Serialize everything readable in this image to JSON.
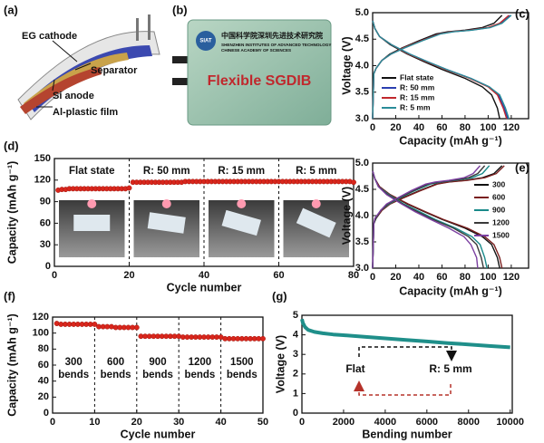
{
  "panel_a": {
    "label": "(a)",
    "parts": [
      "EG cathode",
      "Separator",
      "Si anode",
      "Al-plastic film"
    ]
  },
  "panel_b": {
    "label": "(b)",
    "title": "Flexible SGDIB",
    "logo": "SIAT",
    "institute_cn": "中国科学院深圳先进技术研究院",
    "institute_en": [
      "SHENZHEN INSTITUTES OF ADVANCED TECHNOLOGY",
      "CHINESE ACADEMY OF SCIENCES"
    ]
  },
  "chart_data": [
    {
      "type": "line",
      "panel_label": "(c)",
      "xlabel": "Capacity (mAh g⁻¹)",
      "ylabel": "Voltage (V)",
      "xlim": [
        0,
        135
      ],
      "xticks": [
        0,
        20,
        40,
        60,
        80,
        100,
        120
      ],
      "ylim": [
        3,
        5
      ],
      "yticks": [
        {
          "value": 3,
          "label": "3.0"
        },
        3.5,
        {
          "value": 4,
          "label": "4.0"
        },
        4.5,
        {
          "value": 5,
          "label": "5.0"
        }
      ],
      "legend": "lower left",
      "series": [
        {
          "name": "Flat state",
          "color": "#111111",
          "x": [
            0,
            1,
            3,
            8,
            15,
            25,
            40,
            55,
            65,
            80,
            95,
            105,
            112,
            null,
            0,
            2,
            6,
            15,
            30,
            45,
            60,
            80,
            95,
            103,
            108,
            110
          ],
          "values": [
            3.0,
            3.85,
            3.95,
            4.1,
            4.22,
            4.33,
            4.47,
            4.6,
            4.64,
            4.67,
            4.72,
            4.8,
            4.95,
            null,
            4.85,
            4.7,
            4.55,
            4.4,
            4.22,
            4.07,
            3.93,
            3.76,
            3.6,
            3.45,
            3.2,
            3.0
          ]
        },
        {
          "name": "R: 50 mm",
          "color": "#2b3fb0",
          "x": [
            0,
            1,
            3,
            8,
            16,
            27,
            42,
            58,
            69,
            85,
            101,
            111,
            119,
            null,
            0,
            2,
            6,
            16,
            32,
            48,
            64,
            85,
            101,
            109,
            114,
            117
          ],
          "values": [
            3.0,
            3.85,
            3.95,
            4.1,
            4.22,
            4.33,
            4.47,
            4.6,
            4.64,
            4.67,
            4.72,
            4.8,
            4.95,
            null,
            4.85,
            4.7,
            4.55,
            4.4,
            4.22,
            4.07,
            3.93,
            3.76,
            3.6,
            3.45,
            3.2,
            3.0
          ]
        },
        {
          "name": "R: 15 mm",
          "color": "#c0282d",
          "x": [
            0,
            1,
            3,
            8,
            16,
            26,
            42,
            58,
            68,
            84,
            100,
            110,
            118,
            null,
            0,
            2,
            6,
            16,
            31,
            47,
            63,
            84,
            100,
            108,
            113,
            116
          ],
          "values": [
            3.0,
            3.85,
            3.95,
            4.1,
            4.22,
            4.33,
            4.47,
            4.6,
            4.64,
            4.67,
            4.72,
            4.8,
            4.95,
            null,
            4.85,
            4.7,
            4.55,
            4.4,
            4.22,
            4.07,
            3.93,
            3.76,
            3.6,
            3.45,
            3.2,
            3.0
          ]
        },
        {
          "name": "R: 5 mm",
          "color": "#2a8c99",
          "x": [
            0,
            1,
            3,
            8,
            16,
            27,
            43,
            59,
            70,
            86,
            102,
            112,
            120,
            null,
            0,
            2,
            6,
            16,
            32,
            48,
            64,
            85,
            101,
            110,
            115,
            118
          ],
          "values": [
            3.0,
            3.85,
            3.95,
            4.1,
            4.22,
            4.33,
            4.47,
            4.6,
            4.64,
            4.67,
            4.72,
            4.8,
            4.95,
            null,
            4.85,
            4.7,
            4.55,
            4.4,
            4.22,
            4.07,
            3.93,
            3.76,
            3.6,
            3.45,
            3.2,
            3.0
          ]
        }
      ]
    },
    {
      "type": "scatter",
      "panel_label": "(d)",
      "xlabel": "Cycle number",
      "ylabel": "Capacity (mAh g⁻¹)",
      "xlim": [
        0,
        80
      ],
      "xticks": [
        0,
        20,
        40,
        60,
        80
      ],
      "ylim": [
        0,
        150
      ],
      "yticks": [
        0,
        30,
        60,
        90,
        120,
        150
      ],
      "dividers": [
        20,
        40,
        60
      ],
      "region_labels": [
        "Flat state",
        "R: 50 mm",
        "R: 15 mm",
        "R: 5 mm"
      ],
      "series": [
        {
          "name": "Capacity",
          "color": "#d9261c",
          "x": [
            1,
            2,
            3,
            4,
            5,
            6,
            7,
            8,
            9,
            10,
            11,
            12,
            13,
            14,
            15,
            16,
            17,
            18,
            19,
            20,
            21,
            22,
            23,
            24,
            25,
            26,
            27,
            28,
            29,
            30,
            31,
            32,
            33,
            34,
            35,
            36,
            37,
            38,
            39,
            40,
            41,
            42,
            43,
            44,
            45,
            46,
            47,
            48,
            49,
            50,
            51,
            52,
            53,
            54,
            55,
            56,
            57,
            58,
            59,
            60,
            61,
            62,
            63,
            64,
            65,
            66,
            67,
            68,
            69,
            70,
            71,
            72,
            73,
            74,
            75,
            76,
            77,
            78,
            79,
            80
          ],
          "values": [
            106,
            107,
            107,
            108,
            108,
            108,
            108,
            108,
            108,
            108,
            108,
            108,
            108,
            108,
            108,
            108,
            108,
            108,
            108,
            109,
            117,
            117,
            117,
            117,
            117,
            117,
            117,
            117,
            117,
            117,
            117,
            117,
            117,
            117,
            118,
            118,
            118,
            118,
            118,
            118,
            118,
            118,
            118,
            118,
            118,
            118,
            118,
            118,
            118,
            118,
            118,
            118,
            118,
            118,
            118,
            118,
            118,
            118,
            118,
            118,
            118,
            118,
            118,
            118,
            118,
            118,
            118,
            118,
            118,
            118,
            118,
            118,
            118,
            118,
            118,
            118,
            118,
            118,
            118,
            117
          ]
        }
      ]
    },
    {
      "type": "line",
      "panel_label": "(e)",
      "xlabel": "Capacity (mAh g⁻¹)",
      "ylabel": "Voltage (V)",
      "xlim": [
        0,
        135
      ],
      "xticks": [
        0,
        20,
        40,
        60,
        80,
        100,
        120
      ],
      "ylim": [
        3,
        5
      ],
      "yticks": [
        {
          "value": 3,
          "label": "3.0"
        },
        3.5,
        {
          "value": 4,
          "label": "4.0"
        },
        4.5,
        {
          "value": 5,
          "label": "5.0"
        }
      ],
      "legend": "upper right",
      "series": [
        {
          "name": "300",
          "color": "#111111",
          "x": [
            0,
            1,
            3,
            8,
            15,
            25,
            40,
            55,
            65,
            80,
            95,
            105,
            112,
            null,
            0,
            2,
            6,
            15,
            30,
            45,
            60,
            80,
            95,
            103,
            108,
            110
          ],
          "values": [
            3.0,
            3.85,
            3.95,
            4.1,
            4.22,
            4.33,
            4.47,
            4.6,
            4.64,
            4.67,
            4.72,
            4.8,
            4.95,
            null,
            4.85,
            4.7,
            4.55,
            4.4,
            4.22,
            4.07,
            3.93,
            3.76,
            3.6,
            3.45,
            3.2,
            3.0
          ]
        },
        {
          "name": "600",
          "color": "#7a1f1f",
          "x": [
            0,
            1,
            3,
            8,
            15,
            26,
            41,
            56,
            66,
            82,
            97,
            107,
            114,
            null,
            0,
            2,
            6,
            15,
            31,
            46,
            61,
            82,
            97,
            105,
            110,
            112
          ],
          "values": [
            3.0,
            3.85,
            3.95,
            4.1,
            4.22,
            4.33,
            4.47,
            4.6,
            4.64,
            4.67,
            4.72,
            4.8,
            4.95,
            null,
            4.85,
            4.7,
            4.55,
            4.4,
            4.22,
            4.07,
            3.93,
            3.76,
            3.6,
            3.45,
            3.2,
            3.0
          ]
        },
        {
          "name": "900",
          "color": "#1a8a8a",
          "x": [
            0,
            1,
            3,
            7,
            14,
            23,
            36,
            50,
            59,
            72,
            86,
            95,
            101,
            null,
            0,
            2,
            5,
            14,
            27,
            41,
            54,
            72,
            86,
            93,
            97,
            99
          ],
          "values": [
            3.0,
            3.85,
            3.95,
            4.1,
            4.22,
            4.33,
            4.47,
            4.6,
            4.64,
            4.67,
            4.72,
            4.8,
            4.95,
            null,
            4.85,
            4.7,
            4.55,
            4.4,
            4.22,
            4.07,
            3.93,
            3.76,
            3.6,
            3.45,
            3.2,
            3.0
          ]
        },
        {
          "name": "1200",
          "color": "#3a3a3a",
          "x": [
            0,
            1,
            3,
            7,
            13,
            22,
            35,
            48,
            57,
            70,
            83,
            91,
            97,
            null,
            0,
            2,
            5,
            13,
            26,
            39,
            52,
            70,
            83,
            90,
            94,
            96
          ],
          "values": [
            3.0,
            3.85,
            3.95,
            4.1,
            4.22,
            4.33,
            4.47,
            4.6,
            4.64,
            4.67,
            4.72,
            4.8,
            4.95,
            null,
            4.85,
            4.7,
            4.55,
            4.4,
            4.22,
            4.07,
            3.93,
            3.76,
            3.6,
            3.45,
            3.2,
            3.0
          ]
        },
        {
          "name": "1500",
          "color": "#7b3fa0",
          "x": [
            0,
            1,
            2,
            7,
            12,
            21,
            33,
            46,
            54,
            66,
            79,
            87,
            93,
            null,
            0,
            2,
            5,
            12,
            25,
            37,
            50,
            66,
            79,
            85,
            90,
            91
          ],
          "values": [
            3.0,
            3.85,
            3.95,
            4.1,
            4.22,
            4.33,
            4.47,
            4.6,
            4.64,
            4.67,
            4.72,
            4.8,
            4.95,
            null,
            4.85,
            4.7,
            4.55,
            4.4,
            4.22,
            4.07,
            3.93,
            3.76,
            3.6,
            3.45,
            3.2,
            3.0
          ]
        }
      ]
    },
    {
      "type": "scatter",
      "panel_label": "(f)",
      "xlabel": "Cycle number",
      "ylabel": "Capacity (mAh g⁻¹)",
      "xlim": [
        0,
        50
      ],
      "xticks": [
        0,
        10,
        20,
        30,
        40,
        50
      ],
      "ylim": [
        0,
        120
      ],
      "yticks": [
        0,
        20,
        40,
        60,
        80,
        100,
        120
      ],
      "dividers": [
        10,
        20,
        30,
        40
      ],
      "region_labels": [
        [
          "300",
          "bends"
        ],
        [
          "600",
          "bends"
        ],
        [
          "900",
          "bends"
        ],
        [
          "1200",
          "bends"
        ],
        [
          "1500",
          "bends"
        ]
      ],
      "series": [
        {
          "name": "Capacity",
          "color": "#d9261c",
          "x": [
            1,
            2,
            3,
            4,
            5,
            6,
            7,
            8,
            9,
            10,
            11,
            12,
            13,
            14,
            15,
            16,
            17,
            18,
            19,
            20,
            21,
            22,
            23,
            24,
            25,
            26,
            27,
            28,
            29,
            30,
            31,
            32,
            33,
            34,
            35,
            36,
            37,
            38,
            39,
            40,
            41,
            42,
            43,
            44,
            45,
            46,
            47,
            48,
            49,
            50
          ],
          "values": [
            112,
            111,
            111,
            111,
            111,
            111,
            111,
            111,
            111,
            111,
            108,
            108,
            108,
            108,
            107,
            107,
            107,
            107,
            107,
            107,
            96,
            96,
            96,
            96,
            96,
            96,
            96,
            96,
            96,
            96,
            95,
            95,
            95,
            95,
            95,
            95,
            95,
            95,
            95,
            95,
            93,
            93,
            93,
            93,
            93,
            93,
            93,
            93,
            93,
            93
          ]
        }
      ]
    },
    {
      "type": "line",
      "panel_label": "(g)",
      "xlabel": "Bending number",
      "ylabel": "Voltage (V)",
      "xlim": [
        0,
        10100
      ],
      "xticks": [
        0,
        2000,
        4000,
        6000,
        8000,
        10000
      ],
      "ylim": [
        0,
        5
      ],
      "yticks": [
        0,
        1,
        2,
        3,
        4,
        5
      ],
      "annotations": [
        "Flat",
        "R: 5 mm"
      ],
      "series": [
        {
          "name": "Voltage",
          "color": "#1f8f8a",
          "x": [
            0,
            50,
            150,
            300,
            600,
            1000,
            1500,
            2000,
            3000,
            4000,
            5000,
            6000,
            7000,
            8000,
            9000,
            10000
          ],
          "values": [
            4.8,
            4.6,
            4.4,
            4.25,
            4.15,
            4.08,
            4.02,
            3.98,
            3.9,
            3.82,
            3.74,
            3.66,
            3.58,
            3.51,
            3.43,
            3.36
          ]
        }
      ]
    }
  ]
}
